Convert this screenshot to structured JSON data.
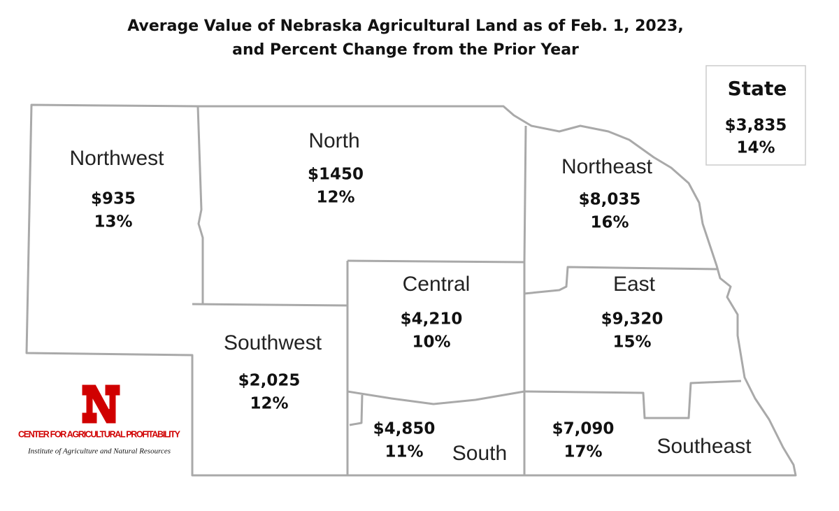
{
  "title": [
    "Average Value of Nebraska Agricultural Land as of Feb. 1, 2023,",
    "and Percent Change from the Prior Year"
  ],
  "regions": [
    {
      "name": "Northwest",
      "value": "$935",
      "change": "13%"
    },
    {
      "name": "North",
      "value": "$1450",
      "change": "12%"
    },
    {
      "name": "Northeast",
      "value": "$8,035",
      "change": "16%"
    },
    {
      "name": "Central",
      "value": "$4,210",
      "change": "10%"
    },
    {
      "name": "East",
      "value": "$9,320",
      "change": "15%"
    },
    {
      "name": "Southwest",
      "value": "$2,025",
      "change": "12%"
    },
    {
      "name": "South",
      "value": "$4,850",
      "change": "11%"
    },
    {
      "name": "Southeast",
      "value": "$7,090",
      "change": "17%"
    }
  ],
  "state": {
    "label": "State",
    "value": "$3,835",
    "change": "14%"
  },
  "logo": {
    "org": "CENTER FOR AGRICULTURAL PROFITABILITY",
    "institute": "Institute of Agriculture and Natural Resources"
  }
}
